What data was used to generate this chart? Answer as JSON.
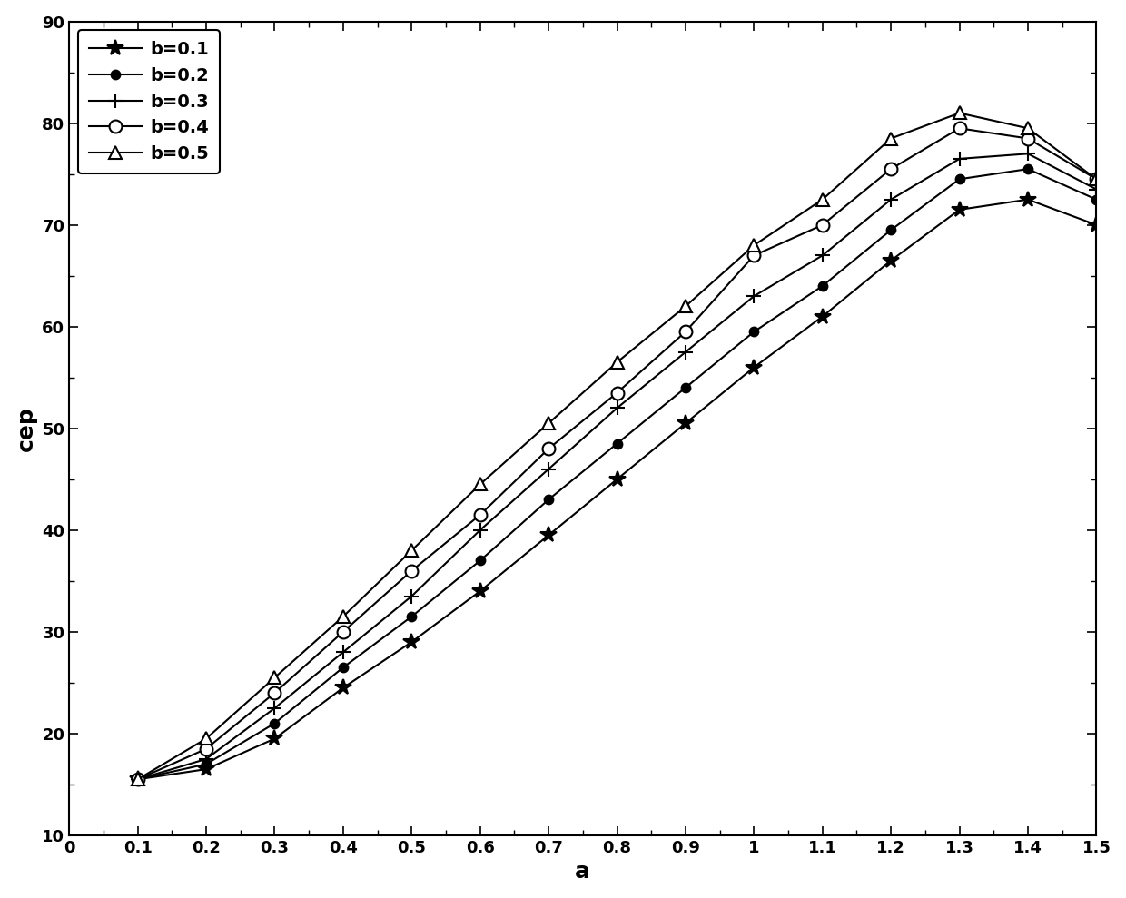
{
  "x": [
    0.1,
    0.2,
    0.3,
    0.4,
    0.5,
    0.6,
    0.7,
    0.8,
    0.9,
    1.0,
    1.1,
    1.2,
    1.3,
    1.4,
    1.5
  ],
  "series": {
    "b=0.1": [
      15.5,
      16.5,
      19.5,
      24.5,
      29.0,
      34.0,
      39.5,
      45.0,
      50.5,
      56.0,
      61.0,
      66.5,
      71.5,
      72.5,
      70.0
    ],
    "b=0.2": [
      15.5,
      17.0,
      21.0,
      26.5,
      31.5,
      37.0,
      43.0,
      48.5,
      54.0,
      59.5,
      64.0,
      69.5,
      74.5,
      75.5,
      72.5
    ],
    "b=0.3": [
      15.5,
      17.5,
      22.5,
      28.0,
      33.5,
      40.0,
      46.0,
      52.0,
      57.5,
      63.0,
      67.0,
      72.5,
      76.5,
      77.0,
      73.5
    ],
    "b=0.4": [
      15.5,
      18.5,
      24.0,
      30.0,
      36.0,
      41.5,
      48.0,
      53.5,
      59.5,
      67.0,
      70.0,
      75.5,
      79.5,
      78.5,
      74.5
    ],
    "b=0.5": [
      15.5,
      19.5,
      25.5,
      31.5,
      38.0,
      44.5,
      50.5,
      56.5,
      62.0,
      68.0,
      72.5,
      78.5,
      81.0,
      79.5,
      74.5
    ]
  },
  "xlabel": "a",
  "ylabel": "cep",
  "xlim": [
    0,
    1.5
  ],
  "ylim": [
    10,
    90
  ],
  "xticks": [
    0,
    0.1,
    0.2,
    0.3,
    0.4,
    0.5,
    0.6,
    0.7,
    0.8,
    0.9,
    1.0,
    1.1,
    1.2,
    1.3,
    1.4,
    1.5
  ],
  "yticks": [
    10,
    20,
    30,
    40,
    50,
    60,
    70,
    80,
    90
  ],
  "line_color": "#000000",
  "background_color": "#ffffff",
  "legend_labels": [
    "b=0.1",
    "b=0.2",
    "b=0.3",
    "b=0.4",
    "b=0.5"
  ],
  "marker_sizes": {
    "b=0.1": 13,
    "b=0.2": 7,
    "b=0.3": 11,
    "b=0.4": 10,
    "b=0.5": 10
  },
  "marker_types": {
    "b=0.1": "*",
    "b=0.2": "o",
    "b=0.3": "+",
    "b=0.4": "o",
    "b=0.5": "^"
  },
  "marker_filled": {
    "b=0.1": false,
    "b=0.2": true,
    "b=0.3": false,
    "b=0.4": false,
    "b=0.5": false
  }
}
